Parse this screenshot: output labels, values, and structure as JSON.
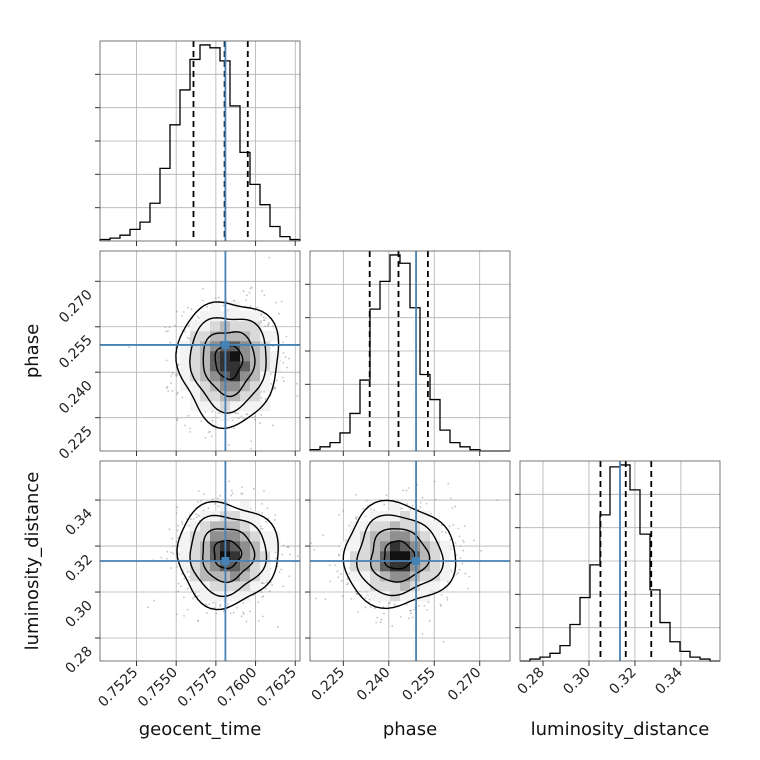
{
  "chart_data": {
    "type": "corner",
    "parameters": [
      "geocent_time",
      "phase",
      "luminosity_distance"
    ],
    "truths": [
      0.7581,
      0.249,
      0.3135
    ],
    "colors": {
      "truth": "#4682b4",
      "hist": "#000000",
      "scatter": "#888888"
    },
    "grid": true,
    "axes": {
      "geocent_time": {
        "range": [
          0.7502,
          0.7628
        ],
        "ticks": [
          0.7525,
          0.755,
          0.7575,
          0.76,
          0.7625
        ],
        "tick_labels": [
          "0.7525",
          "0.7550",
          "0.7575",
          "0.7600",
          "0.7625"
        ]
      },
      "phase": {
        "range": [
          0.214,
          0.28
        ],
        "ticks": [
          0.225,
          0.24,
          0.255,
          0.27
        ],
        "tick_labels": [
          "0.225",
          "0.240",
          "0.255",
          "0.270"
        ]
      },
      "luminosity_distance": {
        "range": [
          0.27,
          0.357
        ],
        "ticks": [
          0.28,
          0.3,
          0.32,
          0.34
        ],
        "tick_labels": [
          "0.28",
          "0.30",
          "0.32",
          "0.34"
        ]
      }
    },
    "marginals": [
      {
        "parameter": "geocent_time",
        "quantiles": [
          0.75609,
          0.75805,
          0.75951
        ],
        "bin_edges": [
          0.7502,
          0.75083,
          0.75146,
          0.75209,
          0.75272,
          0.75335,
          0.75398,
          0.75461,
          0.75524,
          0.75587,
          0.7565,
          0.75713,
          0.75776,
          0.75839,
          0.75902,
          0.75965,
          0.76028,
          0.76091,
          0.76154,
          0.76217,
          0.7628
        ],
        "counts": [
          1,
          2,
          4,
          8,
          13,
          26,
          50,
          80,
          104,
          125,
          135,
          133,
          124,
          93,
          61,
          39,
          25,
          10,
          3,
          1
        ]
      },
      {
        "parameter": "phase",
        "quantiles": [
          0.2337,
          0.2432,
          0.2529
        ],
        "bin_edges": [
          0.214,
          0.2173,
          0.2206,
          0.2239,
          0.2272,
          0.2305,
          0.2338,
          0.2371,
          0.2404,
          0.2437,
          0.247,
          0.2503,
          0.2536,
          0.2569,
          0.2602,
          0.2635,
          0.2668,
          0.2701,
          0.2734,
          0.2767,
          0.28
        ],
        "counts": [
          1,
          3,
          6,
          13,
          27,
          51,
          102,
          122,
          141,
          135,
          103,
          55,
          37,
          15,
          6,
          3,
          1,
          0,
          0,
          0
        ]
      },
      {
        "parameter": "luminosity_distance",
        "quantiles": [
          0.305,
          0.316,
          0.3271
        ],
        "bin_edges": [
          0.27,
          0.27435,
          0.2787,
          0.28305,
          0.2874,
          0.29175,
          0.2961,
          0.30045,
          0.3048,
          0.30915,
          0.3135,
          0.31785,
          0.3222,
          0.32655,
          0.3309,
          0.33525,
          0.3396,
          0.34395,
          0.3483,
          0.35265,
          0.357
        ],
        "counts": [
          0,
          1,
          2,
          4,
          8,
          19,
          33,
          50,
          76,
          101,
          102,
          89,
          66,
          37,
          20,
          10,
          5,
          2,
          1,
          0
        ]
      }
    ],
    "joint": [
      {
        "x": "geocent_time",
        "y": "phase",
        "center": [
          0.7583,
          0.2435
        ],
        "sigma": [
          0.00155,
          0.01
        ],
        "peak": [
          0.7586,
          0.2425
        ]
      },
      {
        "x": "geocent_time",
        "y": "luminosity_distance",
        "center": [
          0.7582,
          0.3165
        ],
        "sigma": [
          0.00155,
          0.011
        ],
        "peak": [
          0.7583,
          0.3155
        ]
      },
      {
        "x": "phase",
        "y": "luminosity_distance",
        "center": [
          0.2432,
          0.316
        ],
        "sigma": [
          0.009,
          0.011
        ],
        "peak": [
          0.2435,
          0.314
        ]
      }
    ]
  }
}
